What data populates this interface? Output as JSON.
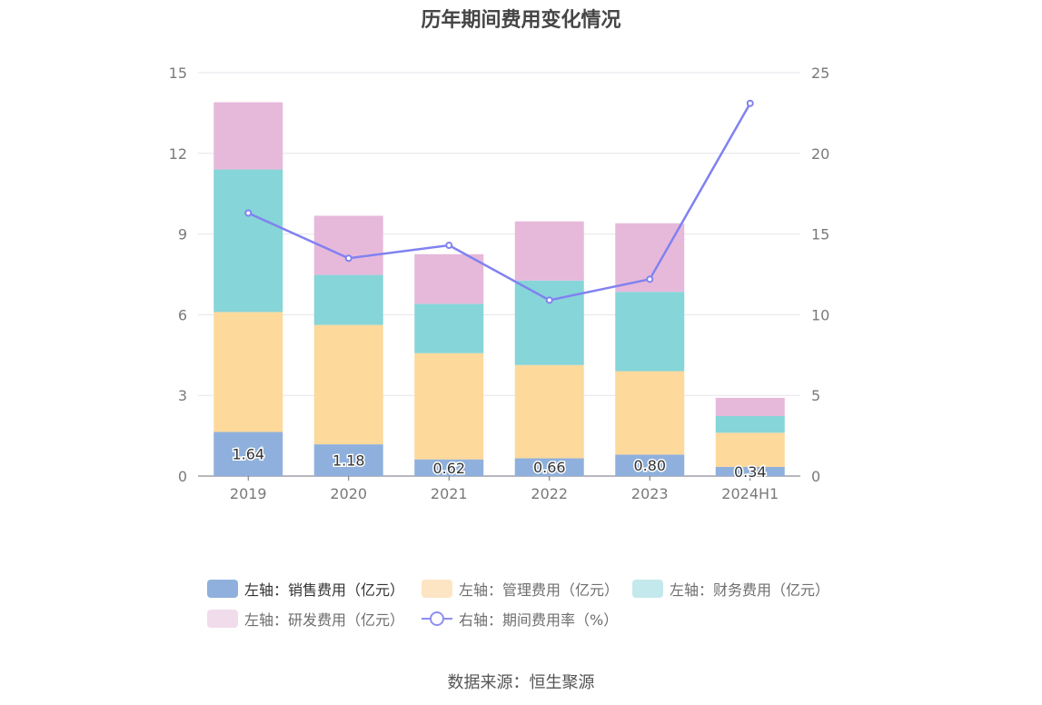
{
  "title": "历年期间费用变化情况",
  "source": "数据来源：恒生聚源",
  "chart_data": {
    "type": "bar",
    "categories": [
      "2019",
      "2020",
      "2021",
      "2022",
      "2023",
      "2024H1"
    ],
    "stacked": true,
    "left_axis": {
      "ylim": [
        0,
        15
      ],
      "ticks": [
        "0",
        "3",
        "6",
        "9",
        "12",
        "15"
      ]
    },
    "right_axis": {
      "ylim": [
        0,
        25
      ],
      "ticks": [
        "0",
        "5",
        "10",
        "15",
        "20",
        "25"
      ]
    },
    "grid": true,
    "legend_position": "bottom",
    "series": [
      {
        "name": "左轴：销售费用（亿元）",
        "axis": "left",
        "type": "bar",
        "color": "#8fb0dc",
        "legend_color": "#8fb0dc",
        "values": [
          1.64,
          1.18,
          0.62,
          0.66,
          0.8,
          0.34
        ],
        "labels": [
          "1.64",
          "1.18",
          "0.62",
          "0.66",
          "0.80",
          "0.34"
        ]
      },
      {
        "name": "左轴：管理费用（亿元）",
        "axis": "left",
        "type": "bar",
        "color": "#fdd99c",
        "legend_color": "#fde5c4",
        "values": [
          4.46,
          4.44,
          3.95,
          3.47,
          3.1,
          1.27
        ]
      },
      {
        "name": "左轴：财务费用（亿元）",
        "axis": "left",
        "type": "bar",
        "color": "#86d5d8",
        "legend_color": "#c3e9ec",
        "values": [
          5.3,
          1.86,
          1.83,
          3.14,
          2.95,
          0.62
        ]
      },
      {
        "name": "左轴：研发费用（亿元）",
        "axis": "left",
        "type": "bar",
        "color": "#e6b9da",
        "legend_color": "#f1dceb",
        "values": [
          2.5,
          2.2,
          1.85,
          2.2,
          2.55,
          0.68
        ]
      },
      {
        "name": "右轴：期间费用率（%）",
        "axis": "right",
        "type": "line",
        "color": "#8181f0",
        "values": [
          16.3,
          13.5,
          14.3,
          10.9,
          12.2,
          23.1
        ]
      }
    ]
  }
}
